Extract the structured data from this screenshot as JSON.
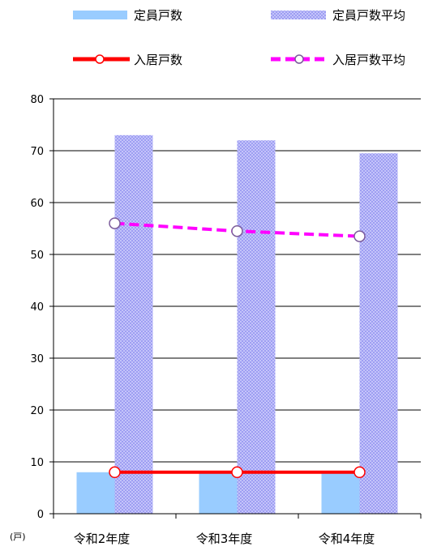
{
  "chart_data": {
    "type": "bar",
    "categories": [
      "令和2年度",
      "令和3年度",
      "令和4年度"
    ],
    "unit_label": "(戸)",
    "ylim": [
      0,
      80
    ],
    "yticks": [
      0,
      10,
      20,
      30,
      40,
      50,
      60,
      70,
      80
    ],
    "grid": true,
    "legend_position": "top",
    "bar_series": [
      {
        "name": "定員戸数",
        "values": [
          8,
          8,
          8
        ],
        "color": "#99ccff",
        "pattern": "solid"
      },
      {
        "name": "定員戸数平均",
        "values": [
          73,
          72,
          69.5
        ],
        "color": "#9999ee",
        "pattern": "hatched"
      }
    ],
    "line_series": [
      {
        "name": "入居戸数",
        "values": [
          8,
          8,
          8
        ],
        "color": "#ff0000",
        "style": "solid"
      },
      {
        "name": "入居戸数平均",
        "values": [
          56,
          54.5,
          53.5
        ],
        "color": "#ff00ff",
        "style": "dashed"
      }
    ]
  }
}
